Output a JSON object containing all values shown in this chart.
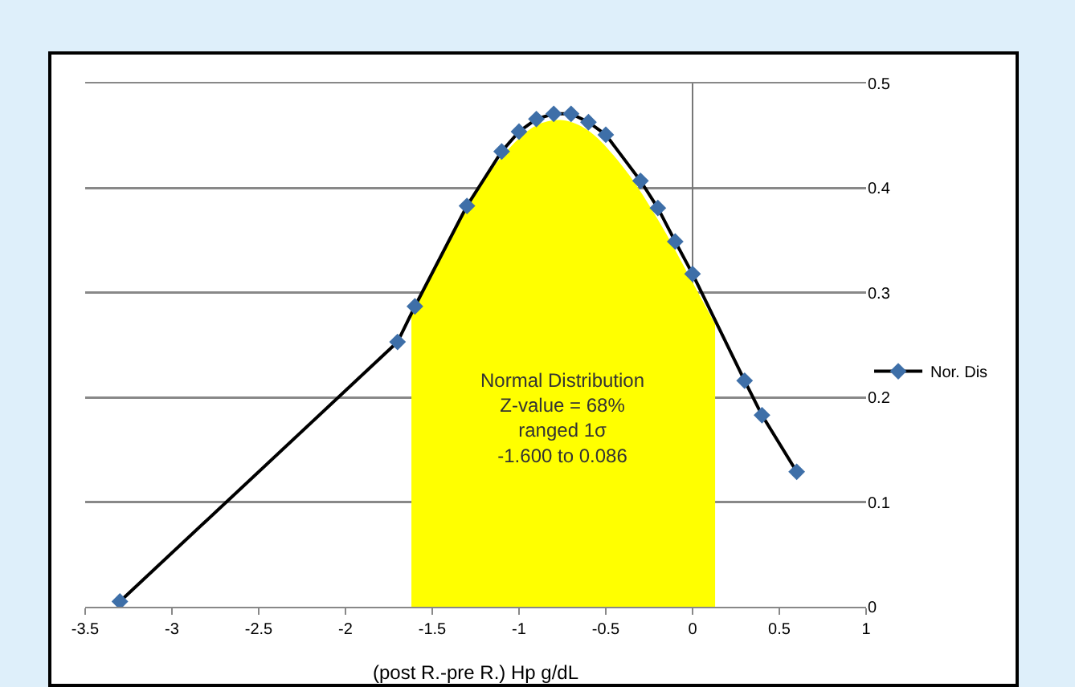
{
  "chart_data": {
    "type": "line",
    "xlabel": "(post R.-pre R.) Hp g/dL",
    "series": [
      {
        "type": "area",
        "marker": "none",
        "color": "#ffff00",
        "x": [
          -1.62,
          -1.5,
          -1.3,
          -1.1,
          -0.9,
          -0.75,
          -0.6,
          -0.4,
          -0.2,
          0,
          0.13
        ],
        "values": [
          0.28,
          0.32,
          0.38,
          0.43,
          0.46,
          0.465,
          0.455,
          0.42,
          0.37,
          0.31,
          0.27
        ]
      },
      {
        "name": "Nor. Dis",
        "color": "#3e6fa8",
        "x": [
          -3.3,
          -1.7,
          -1.6,
          -1.3,
          -1.1,
          -1.0,
          -0.9,
          -0.8,
          -0.7,
          -0.6,
          -0.5,
          -0.3,
          -0.2,
          -0.1,
          0,
          0.3,
          0.4,
          0.6
        ],
        "values": [
          0.005,
          0.253,
          0.287,
          0.383,
          0.435,
          0.454,
          0.466,
          0.471,
          0.471,
          0.463,
          0.451,
          0.407,
          0.381,
          0.349,
          0.318,
          0.216,
          0.183,
          0.129
        ]
      }
    ],
    "xlim": [
      -3.5,
      1
    ],
    "xticks": [
      -3.5,
      -3,
      -2.5,
      -2,
      -1.5,
      -1,
      -0.5,
      0,
      0.5,
      1
    ],
    "ylim": [
      0,
      0.5
    ],
    "yticks": [
      0,
      0.1,
      0.2,
      0.3,
      0.4,
      0.5
    ],
    "grid": "y",
    "legend": "right",
    "marker": "diamond",
    "line_style": "solid",
    "annotations": [
      "Normal Distribution\nZ-value = 68%\nranged 1σ\n-1.600 to 0.086"
    ]
  }
}
